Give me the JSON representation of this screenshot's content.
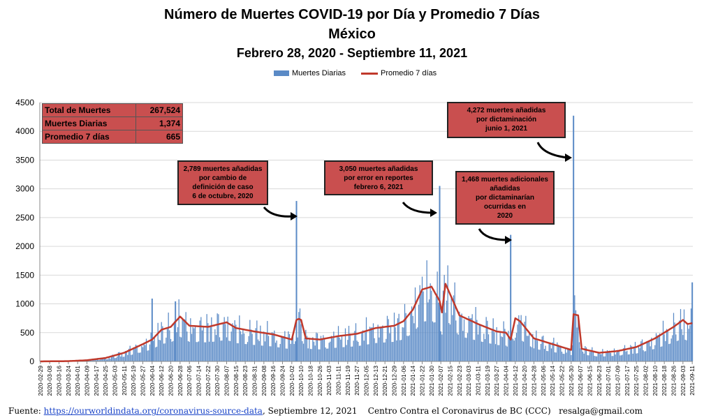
{
  "title_line1": "Número de Muertes COVID-19 por Día y Promedio 7 Días",
  "title_line2": "México",
  "title_line3": "Febrero 28, 2020 - Septiembre 11, 2021",
  "legend": {
    "bars": "Muertes Diarias",
    "line": "Promedio 7 días"
  },
  "colors": {
    "bars": "#5a8ac6",
    "line": "#c0392b",
    "box": "#c94f4f"
  },
  "stats": [
    {
      "label": "Total de Muertes",
      "value": "267,524"
    },
    {
      "label": "Muertes Diarias",
      "value": "1,374"
    },
    {
      "label": "Promedio 7 días",
      "value": "665"
    }
  ],
  "notes": {
    "n1": "2,789 muertes  añadidas\npor cambio de\ndefinición de caso\n6 de octubre, 2020",
    "n2": "3,050 muertes  añadidas\npor error en reportes\nfebrero  6, 2021",
    "n3": "1,468  muertes adicionales\nañadidas\npor dictaminarían\nocurridas en\n2020",
    "n4": "4,272  muertes añadidas\npor dictaminación\njunio 1, 2021"
  },
  "footer": {
    "prefix": "Fuente: ",
    "link": "https://ourworldindata.org/coronavirus-source-data",
    "date": ",  Septiembre 12, 2021",
    "org": "Centro Contra el Coronavirus de BC (CCC)",
    "email": "resalga@gmail.com"
  },
  "chart_data": {
    "type": "bar",
    "title": "Número de Muertes COVID-19 por Día y Promedio 7 Días",
    "ylim": [
      0,
      4500
    ],
    "yticks": [
      0,
      500,
      1000,
      1500,
      2000,
      2500,
      3000,
      3500,
      4000,
      4500
    ],
    "grid": true,
    "legend_position": "top-center",
    "x_start": "2020-02-29",
    "x_end": "2021-09-11",
    "x_tick_labels": [
      "2020-02-29",
      "2020-03-08",
      "2020-03-16",
      "2020-03-24",
      "2020-04-01",
      "2020-04-09",
      "2020-04-17",
      "2020-04-25",
      "2020-05-03",
      "2020-05-11",
      "2020-05-19",
      "2020-05-27",
      "2020-06-04",
      "2020-06-12",
      "2020-06-20",
      "2020-06-28",
      "2020-07-06",
      "2020-07-14",
      "2020-07-22",
      "2020-07-30",
      "2020-08-07",
      "2020-08-15",
      "2020-08-23",
      "2020-08-31",
      "2020-09-08",
      "2020-09-16",
      "2020-09-24",
      "2020-10-02",
      "2020-10-10",
      "2020-10-18",
      "2020-10-26",
      "2020-11-03",
      "2020-11-11",
      "2020-11-19",
      "2020-11-27",
      "2020-12-05",
      "2020-12-13",
      "2020-12-21",
      "2020-12-29",
      "2021-01-06",
      "2021-01-14",
      "2021-01-22",
      "2021-01-30",
      "2021-02-07",
      "2021-02-15",
      "2021-02-23",
      "2021-03-03",
      "2021-03-11",
      "2021-03-19",
      "2021-03-27",
      "2021-04-04",
      "2021-04-12",
      "2021-04-20",
      "2021-04-28",
      "2021-05-06",
      "2021-05-14",
      "2021-05-22",
      "2021-05-30",
      "2021-06-07",
      "2021-06-15",
      "2021-06-23",
      "2021-07-01",
      "2021-07-09",
      "2021-07-17",
      "2021-07-25",
      "2021-08-02",
      "2021-08-10",
      "2021-08-18",
      "2021-08-26",
      "2021-09-03",
      "2021-09-11"
    ],
    "series": [
      {
        "name": "Promedio 7 días",
        "kind": "line",
        "anchor_dates": [
          "2020-02-29",
          "2020-03-24",
          "2020-04-09",
          "2020-04-25",
          "2020-05-11",
          "2020-05-27",
          "2020-06-04",
          "2020-06-12",
          "2020-06-20",
          "2020-06-28",
          "2020-07-06",
          "2020-07-22",
          "2020-08-07",
          "2020-08-15",
          "2020-08-31",
          "2020-09-16",
          "2020-10-02",
          "2020-10-06",
          "2020-10-08",
          "2020-10-10",
          "2020-10-14",
          "2020-10-26",
          "2020-11-11",
          "2020-11-27",
          "2020-12-13",
          "2020-12-29",
          "2021-01-06",
          "2021-01-14",
          "2021-01-22",
          "2021-01-30",
          "2021-02-06",
          "2021-02-08",
          "2021-02-11",
          "2021-02-23",
          "2021-03-11",
          "2021-03-27",
          "2021-04-04",
          "2021-04-08",
          "2021-04-12",
          "2021-04-16",
          "2021-04-28",
          "2021-05-14",
          "2021-05-30",
          "2021-06-01",
          "2021-06-05",
          "2021-06-08",
          "2021-06-23",
          "2021-07-09",
          "2021-07-25",
          "2021-08-10",
          "2021-08-26",
          "2021-09-03",
          "2021-09-07",
          "2021-09-11"
        ],
        "anchor_values": [
          0,
          5,
          20,
          60,
          150,
          300,
          380,
          550,
          600,
          780,
          620,
          600,
          680,
          580,
          520,
          470,
          380,
          720,
          740,
          720,
          400,
          380,
          440,
          480,
          580,
          620,
          700,
          900,
          1250,
          1300,
          1050,
          850,
          1350,
          800,
          650,
          520,
          500,
          380,
          750,
          700,
          400,
          300,
          200,
          820,
          800,
          220,
          150,
          180,
          250,
          400,
          600,
          720,
          650,
          665
        ]
      },
      {
        "name": "Muertes Diarias",
        "kind": "bar",
        "spikes": [
          {
            "date": "2020-10-06",
            "value": 2789
          },
          {
            "date": "2021-02-06",
            "value": 3050
          },
          {
            "date": "2021-04-08",
            "value": 2200
          },
          {
            "date": "2021-06-01",
            "value": 4272
          },
          {
            "date": "2020-06-04",
            "value": 1092
          },
          {
            "date": "2020-06-24",
            "value": 1044
          },
          {
            "date": "2021-09-11",
            "value": 1374
          }
        ]
      }
    ]
  }
}
